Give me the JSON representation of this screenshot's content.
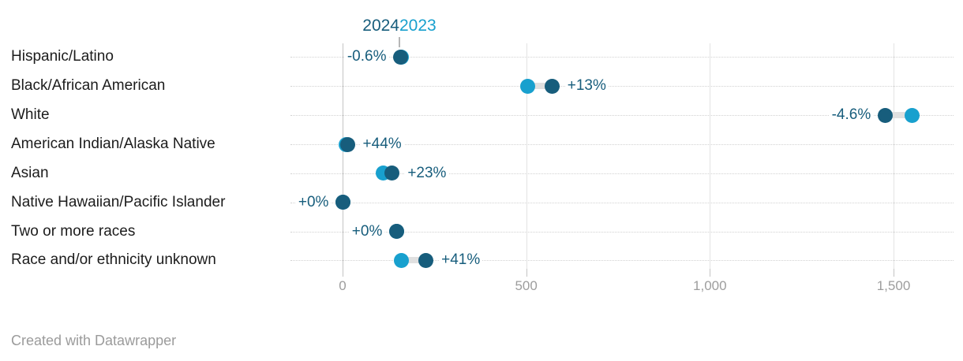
{
  "legend": {
    "year_2024": "2024",
    "year_2023": "2023"
  },
  "colors": {
    "year_2024": "#175d7c",
    "year_2023": "#18a0ce",
    "connector": "#e0e0e0",
    "gridline_zero": "#c4c4c4",
    "gridline": "#e3e3e3",
    "row_dotted_line": "#d2d2d2",
    "axis_text": "#9d9d9d",
    "category_text": "#1c1c1c",
    "footer_text": "#9b9b9b"
  },
  "footer": {
    "credit": "Created with Datawrapper"
  },
  "chart_data": {
    "type": "scatter",
    "subtype": "dot-plot-range (Datawrapper arrow/range plot, 2023 vs 2024)",
    "series": [
      "2024",
      "2023"
    ],
    "categories": [
      "Hispanic/Latino",
      "Black/African American",
      "White",
      "American Indian/Alaska Native",
      "Asian",
      "Native Hawaiian/Pacific Islander",
      "Two or more races",
      "Race and/or ethnicity unknown"
    ],
    "rows": [
      {
        "label": "Hispanic/Latino",
        "v2023": 160,
        "v2024": 159,
        "change": "-0.6%",
        "label_side": "left"
      },
      {
        "label": "Black/African American",
        "v2023": 505,
        "v2024": 570,
        "change": "+13%",
        "label_side": "right"
      },
      {
        "label": "White",
        "v2023": 1550,
        "v2024": 1478,
        "change": "-4.6%",
        "label_side": "left"
      },
      {
        "label": "American Indian/Alaska Native",
        "v2023": 9,
        "v2024": 13,
        "change": "+44%",
        "label_side": "right"
      },
      {
        "label": "Asian",
        "v2023": 110,
        "v2024": 135,
        "change": "+23%",
        "label_side": "right"
      },
      {
        "label": "Native Hawaiian/Pacific Islander",
        "v2023": 2,
        "v2024": 2,
        "change": "+0%",
        "label_side": "left"
      },
      {
        "label": "Two or more races",
        "v2023": 148,
        "v2024": 148,
        "change": "+0%",
        "label_side": "left"
      },
      {
        "label": "Race and/or ethnicity unknown",
        "v2023": 161,
        "v2024": 227,
        "change": "+41%",
        "label_side": "right"
      }
    ],
    "x_ticks": [
      0,
      500,
      1000,
      1500
    ],
    "x_tick_labels": [
      "0",
      "500",
      "1,000",
      "1,500"
    ],
    "xlim": [
      0,
      1660
    ],
    "xlabel": "",
    "ylabel": "",
    "title": "",
    "grid": "vertical solid gridlines at ticks; horizontal dotted guide line per row",
    "legend_position": "top, centered above first-row 2024 dot with pointer tick"
  }
}
